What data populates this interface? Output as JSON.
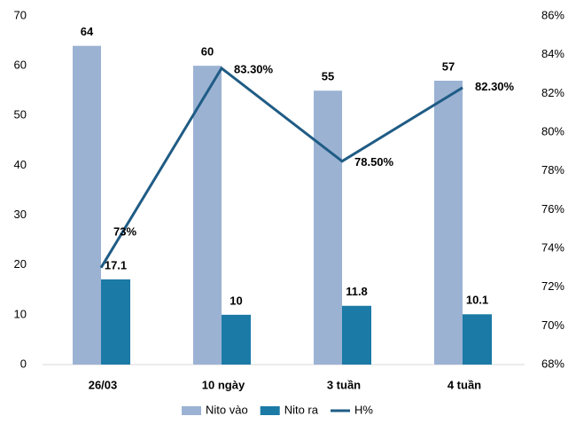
{
  "chart_data": {
    "type": "bar-line",
    "categories": [
      "26/03",
      "10 ngày",
      "3 tuần",
      "4 tuần"
    ],
    "series": [
      {
        "name": "Nito vào",
        "color": "#9bb2d3",
        "values": [
          64,
          60,
          55,
          57
        ]
      },
      {
        "name": "Nito ra",
        "color": "#1b7aa6",
        "values": [
          17.1,
          10,
          11.8,
          10.1
        ]
      },
      {
        "name": "H%",
        "color": "#1f5c85",
        "axis": "y2",
        "type": "line",
        "values": [
          73,
          83.3,
          78.5,
          82.3
        ],
        "value_labels": [
          "73%",
          "83.30%",
          "78.50%",
          "82.30%"
        ]
      }
    ],
    "ylim": [
      0,
      70
    ],
    "yticks": [
      0,
      10,
      20,
      30,
      40,
      50,
      60,
      70
    ],
    "y2lim": [
      68,
      86
    ],
    "y2ticks": [
      {
        "value": 68,
        "label": "68%"
      },
      {
        "value": 70,
        "label": "70%"
      },
      {
        "value": 72,
        "label": "72%"
      },
      {
        "value": 74,
        "label": "74%"
      },
      {
        "value": 76,
        "label": "76%"
      },
      {
        "value": 78,
        "label": "78%"
      },
      {
        "value": 80,
        "label": "80%"
      },
      {
        "value": 82,
        "label": "82%"
      },
      {
        "value": 84,
        "label": "84%"
      },
      {
        "value": 86,
        "label": "86%"
      }
    ],
    "grid": false,
    "legend": "bottom"
  }
}
